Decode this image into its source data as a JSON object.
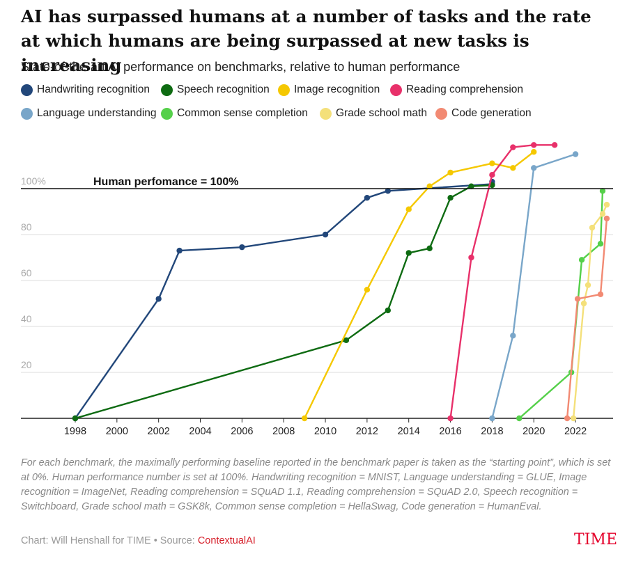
{
  "header": {
    "title": "AI has surpassed humans at a number of tasks and the rate at which humans are being surpassed at new tasks is increasing",
    "subtitle": "State-of-the-art AI performance on benchmarks, relative to human performance"
  },
  "footer": {
    "note": "For each benchmark, the maximally performing baseline reported in the benchmark paper is taken as the “starting point”, which is set at 0%. Human performance number is set at 100%. Handwriting recognition = MNIST, Language understanding = GLUE, Image recognition = ImageNet, Reading comprehension = SQuAD 1.1, Reading comprehension = SQuAD 2.0, Speech recognition = Switchboard, Grade school math = GSK8k, Common sense completion = HellaSwag, Code generation = HumanEval.",
    "credit_prefix": "Chart: Will Henshall for TIME • Source: ",
    "source_name": "ContextualAI",
    "brand": "TIME"
  },
  "chart_data": {
    "type": "line",
    "xlim": [
      1997.5,
      2023.7
    ],
    "ylim": [
      0,
      120
    ],
    "x_ticks": [
      1998,
      2000,
      2002,
      2004,
      2006,
      2008,
      2010,
      2012,
      2014,
      2016,
      2018,
      2020,
      2022
    ],
    "y_ticks": [
      {
        "value": 20,
        "label": "20"
      },
      {
        "value": 40,
        "label": "40"
      },
      {
        "value": 60,
        "label": "60"
      },
      {
        "value": 80,
        "label": "80"
      },
      {
        "value": 100,
        "label": "100%"
      }
    ],
    "grid": true,
    "legend_position": "top",
    "reference_line": {
      "value": 100,
      "label": "Human perfomance = 100%"
    },
    "series": [
      {
        "name": "Handwriting recognition",
        "color": "#22477a",
        "points": [
          [
            1998,
            0
          ],
          [
            2002,
            52
          ],
          [
            2003,
            73
          ],
          [
            2006,
            74.5
          ],
          [
            2010,
            80
          ],
          [
            2012,
            96
          ],
          [
            2013,
            99
          ],
          [
            2018,
            102
          ],
          [
            2018,
            103
          ]
        ]
      },
      {
        "name": "Speech recognition",
        "color": "#0e6b12",
        "points": [
          [
            1998,
            0
          ],
          [
            2011,
            34
          ],
          [
            2013,
            47
          ],
          [
            2014,
            72
          ],
          [
            2015,
            74
          ],
          [
            2016,
            96
          ],
          [
            2017,
            101
          ],
          [
            2018,
            101.5
          ]
        ]
      },
      {
        "name": "Image recognition",
        "color": "#f5c800",
        "points": [
          [
            2009,
            0
          ],
          [
            2012,
            56
          ],
          [
            2014,
            91
          ],
          [
            2015,
            101
          ],
          [
            2016,
            107
          ],
          [
            2018,
            111
          ],
          [
            2019,
            109
          ],
          [
            2020,
            116
          ]
        ]
      },
      {
        "name": "Reading comprehension",
        "color": "#e8306a",
        "points": [
          [
            2016,
            0
          ],
          [
            2017,
            70
          ],
          [
            2018,
            106
          ],
          [
            2019,
            118
          ],
          [
            2020,
            119
          ],
          [
            2021,
            119
          ]
        ]
      },
      {
        "name": "Language understanding",
        "color": "#79a6c9",
        "points": [
          [
            2018,
            0
          ],
          [
            2019,
            36
          ],
          [
            2020,
            109
          ],
          [
            2022,
            115
          ]
        ]
      },
      {
        "name": "Common sense completion",
        "color": "#55d04a",
        "points": [
          [
            2019.3,
            0
          ],
          [
            2021.8,
            20
          ],
          [
            2022.3,
            69
          ],
          [
            2023.2,
            76
          ],
          [
            2023.3,
            99
          ]
        ]
      },
      {
        "name": "Grade school math",
        "color": "#f4e07a",
        "points": [
          [
            2021.9,
            0
          ],
          [
            2022.4,
            50
          ],
          [
            2022.6,
            58
          ],
          [
            2022.8,
            83
          ],
          [
            2023.3,
            89
          ],
          [
            2023.5,
            93
          ]
        ]
      },
      {
        "name": "Code generation",
        "color": "#f28a73",
        "points": [
          [
            2021.6,
            0
          ],
          [
            2022.1,
            52
          ],
          [
            2023.2,
            54
          ],
          [
            2023.5,
            87
          ]
        ]
      }
    ]
  }
}
